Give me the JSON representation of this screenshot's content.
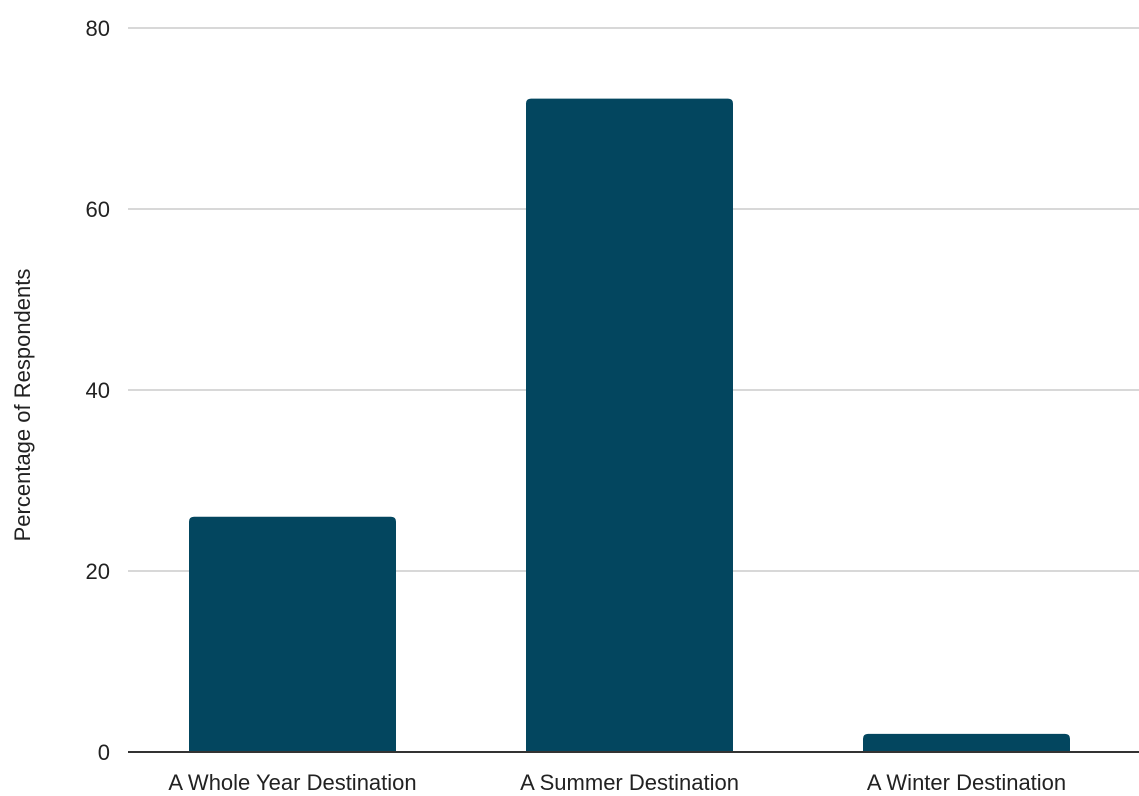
{
  "colors": {
    "bar": "#03465f",
    "gridline": "#cccccc",
    "baseline": "#333333",
    "text": "#222222"
  },
  "chart_data": {
    "type": "bar",
    "title": "",
    "xlabel": "",
    "ylabel": "Percentage of Respondents",
    "categories": [
      "A Whole Year Destination",
      "A Summer Destination",
      "A Winter Destination"
    ],
    "values": [
      26,
      72.2,
      2
    ],
    "ylim": [
      0,
      80
    ],
    "yticks": [
      "0",
      "20",
      "40",
      "60",
      "80"
    ],
    "grid": true,
    "legend": "none"
  }
}
